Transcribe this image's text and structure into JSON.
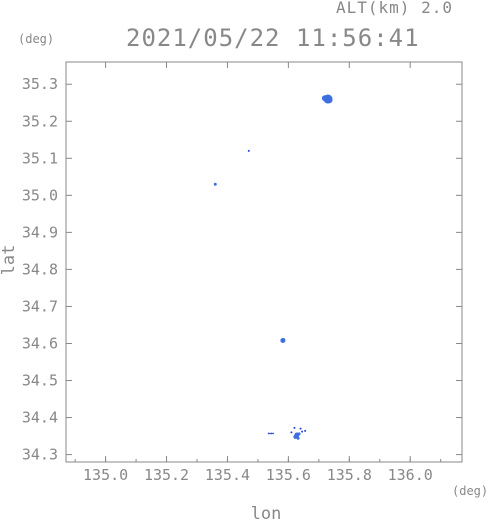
{
  "header": {
    "altitude_label": "ALT(km) 2.0",
    "timestamp": "2021/05/22 11:56:41"
  },
  "chart_data": {
    "type": "scatter",
    "title": "2021/05/22 11:56:41",
    "xlabel": "lon",
    "ylabel": "lat",
    "x_unit": "(deg)",
    "y_unit": "(deg)",
    "xlim": [
      134.87,
      136.17
    ],
    "ylim": [
      34.28,
      35.36
    ],
    "x_ticks": [
      135.0,
      135.2,
      135.4,
      135.6,
      135.8,
      136.0
    ],
    "x_tick_labels": [
      "135.0",
      "135.2",
      "135.4",
      "135.6",
      "135.8",
      "136.0"
    ],
    "y_ticks": [
      34.3,
      34.4,
      34.5,
      34.6,
      34.7,
      34.8,
      34.9,
      35.0,
      35.1,
      35.2,
      35.3
    ],
    "y_tick_labels": [
      "34.3",
      "34.4",
      "34.5",
      "34.6",
      "34.7",
      "34.8",
      "34.9",
      "35.0",
      "35.1",
      "35.2",
      "35.3"
    ],
    "grid": false,
    "colors": {
      "point": "#3d6fe0",
      "point_dark": "#2a3fd0",
      "axis": "#888888"
    },
    "series": [
      {
        "points": [
          {
            "x": 135.73,
            "y": 35.26,
            "size": 4.5
          },
          {
            "x": 135.72,
            "y": 35.262,
            "size": 3
          },
          {
            "x": 135.735,
            "y": 35.257,
            "size": 3
          },
          {
            "x": 135.47,
            "y": 35.12,
            "size": 1
          },
          {
            "x": 135.36,
            "y": 35.03,
            "size": 1.5
          },
          {
            "x": 135.582,
            "y": 34.608,
            "size": 2.5
          },
          {
            "x": 135.585,
            "y": 34.61,
            "size": 1.5
          },
          {
            "x": 135.628,
            "y": 34.353,
            "size": 2.5
          },
          {
            "x": 135.623,
            "y": 34.348,
            "size": 2
          },
          {
            "x": 135.635,
            "y": 34.356,
            "size": 1.5
          },
          {
            "x": 135.645,
            "y": 34.362,
            "size": 1
          },
          {
            "x": 135.655,
            "y": 34.364,
            "size": 1
          },
          {
            "x": 135.62,
            "y": 34.372,
            "size": 1
          },
          {
            "x": 135.64,
            "y": 34.37,
            "size": 1
          },
          {
            "x": 135.632,
            "y": 34.344,
            "size": 1.5
          },
          {
            "x": 135.61,
            "y": 34.36,
            "size": 1
          },
          {
            "x": 135.55,
            "y": 34.357,
            "size": 0.8
          },
          {
            "x": 135.545,
            "y": 34.357,
            "size": 0.8
          },
          {
            "x": 135.54,
            "y": 34.357,
            "size": 0.8
          },
          {
            "x": 135.535,
            "y": 34.357,
            "size": 0.8
          }
        ]
      }
    ]
  }
}
